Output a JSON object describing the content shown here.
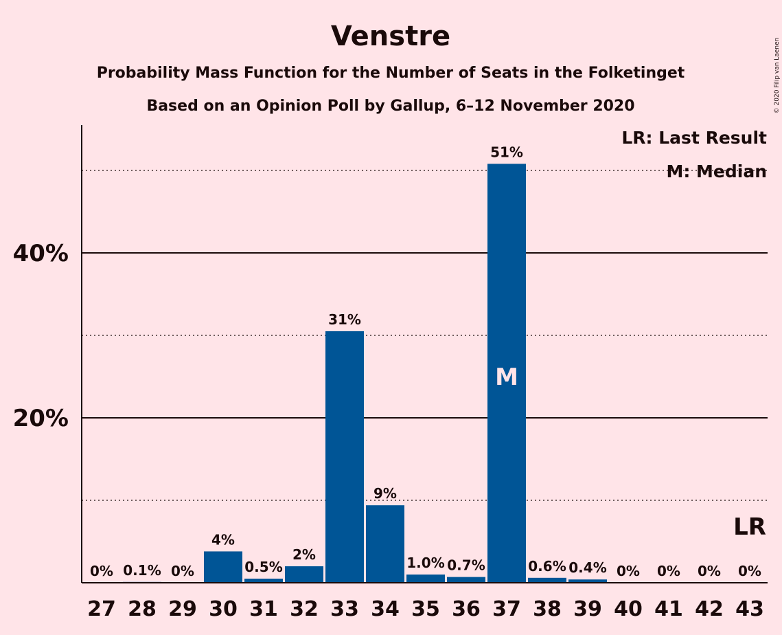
{
  "chart_data": {
    "type": "bar",
    "title": "Venstre",
    "subtitle_1": "Probability Mass Function for the Number of Seats in the Folketinget",
    "subtitle_2": "Based on an Opinion Poll by Gallup, 6–12 November 2020",
    "copyright": "© 2020 Filip van Laenen",
    "categories": [
      "27",
      "28",
      "29",
      "30",
      "31",
      "32",
      "33",
      "34",
      "35",
      "36",
      "37",
      "38",
      "39",
      "40",
      "41",
      "42",
      "43"
    ],
    "values": [
      0,
      0.1,
      0,
      3.8,
      0.5,
      2.0,
      30.5,
      9.4,
      1.0,
      0.7,
      50.8,
      0.6,
      0.4,
      0,
      0,
      0,
      0
    ],
    "value_labels": [
      "0%",
      "0.1%",
      "0%",
      "4%",
      "0.5%",
      "2%",
      "31%",
      "9%",
      "1.0%",
      "0.7%",
      "51%",
      "0.6%",
      "0.4%",
      "0%",
      "0%",
      "0%",
      "0%"
    ],
    "ylim": [
      0,
      55
    ],
    "y_ticks": [
      {
        "value": 20,
        "label": "20%"
      },
      {
        "value": 40,
        "label": "40%"
      }
    ],
    "y_minor_gridlines": [
      10,
      30,
      50
    ],
    "median_category": "37",
    "median_mark": "M",
    "last_result_category": "43",
    "last_result_mark": "LR",
    "legend": {
      "placement": "top-right",
      "lr_text": "LR: Last Result",
      "median_text": "M: Median"
    },
    "colors": {
      "bar": "#005596",
      "background": "#ffe4e8",
      "text": "#1a0a0a"
    }
  }
}
